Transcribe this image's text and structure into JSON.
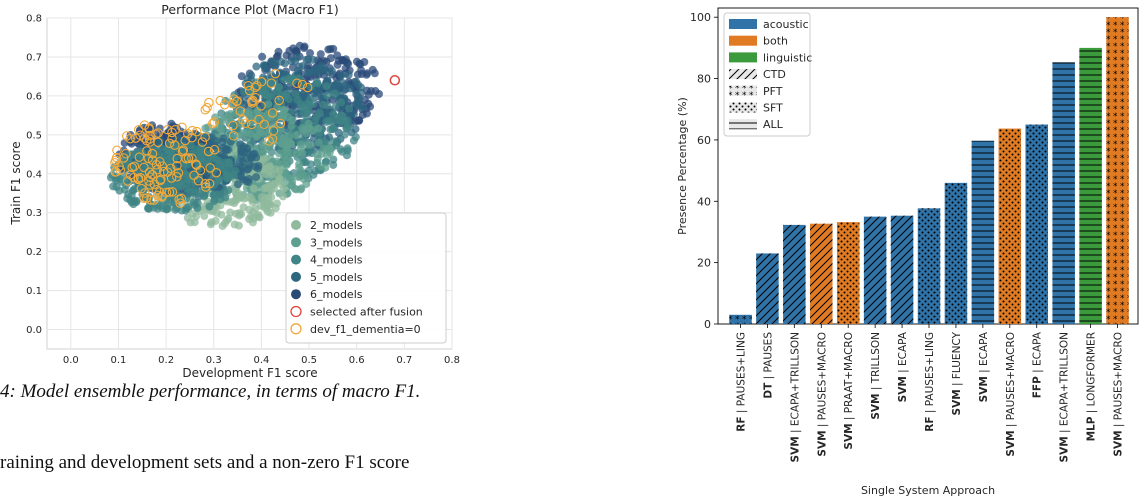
{
  "chart_data": [
    {
      "type": "scatter",
      "title": "Performance Plot (Macro F1)",
      "xlabel": "Development F1 score",
      "ylabel": "Train F1 score",
      "xlim": [
        -0.05,
        0.8
      ],
      "ylim": [
        -0.05,
        0.8
      ],
      "xticks": [
        "0.0",
        "0.1",
        "0.2",
        "0.3",
        "0.4",
        "0.5",
        "0.6",
        "0.7",
        "0.8"
      ],
      "yticks": [
        "0.0",
        "0.1",
        "0.2",
        "0.3",
        "0.4",
        "0.5",
        "0.6",
        "0.7",
        "0.8"
      ],
      "grid": true,
      "legend_position": "lower-right",
      "series": [
        {
          "name": "2_models",
          "color": "#8fba9c"
        },
        {
          "name": "3_models",
          "color": "#5e9f8f"
        },
        {
          "name": "4_models",
          "color": "#3f8486"
        },
        {
          "name": "5_models",
          "color": "#2e6680"
        },
        {
          "name": "6_models",
          "color": "#2a4a78"
        },
        {
          "name": "selected after fusion",
          "color": "#e0423c",
          "marker": "hollow-circle"
        },
        {
          "name": "dev_f1_dementia=0",
          "color": "#f0a83a",
          "marker": "hollow-circle"
        }
      ],
      "clusters": [
        {
          "series": "6_models",
          "x": [
            0.35,
            0.65
          ],
          "y": [
            0.5,
            0.73
          ]
        },
        {
          "series": "5_models",
          "x": [
            0.33,
            0.62
          ],
          "y": [
            0.45,
            0.7
          ]
        },
        {
          "series": "4_models",
          "x": [
            0.3,
            0.6
          ],
          "y": [
            0.38,
            0.65
          ]
        },
        {
          "series": "3_models",
          "x": [
            0.25,
            0.55
          ],
          "y": [
            0.33,
            0.58
          ]
        },
        {
          "series": "2_models",
          "x": [
            0.18,
            0.45
          ],
          "y": [
            0.26,
            0.47
          ]
        },
        {
          "series": "6_models",
          "x": [
            0.1,
            0.3
          ],
          "y": [
            0.35,
            0.53
          ]
        },
        {
          "series": "5_models",
          "x": [
            0.12,
            0.4
          ],
          "y": [
            0.34,
            0.5
          ]
        },
        {
          "series": "4_models",
          "x": [
            0.08,
            0.35
          ],
          "y": [
            0.3,
            0.48
          ]
        }
      ],
      "highlight_points": [
        {
          "series": "selected after fusion",
          "x": 0.68,
          "y": 0.64
        }
      ]
    },
    {
      "type": "bar",
      "xlabel": "Single System Approach",
      "ylabel": "Presence Percentage (%)",
      "ylim": [
        0,
        103
      ],
      "yticks": [
        "0",
        "20",
        "40",
        "60",
        "80",
        "100"
      ],
      "legend_position": "top-left",
      "legend": [
        {
          "label": "acoustic",
          "kind": "color",
          "color": "#2f73a8"
        },
        {
          "label": "both",
          "kind": "color",
          "color": "#e07b24"
        },
        {
          "label": "linguistic",
          "kind": "color",
          "color": "#3a9a3c"
        },
        {
          "label": "CTD",
          "kind": "hatch",
          "hatch": "diagonal"
        },
        {
          "label": "PFT",
          "kind": "hatch",
          "hatch": "stars"
        },
        {
          "label": "SFT",
          "kind": "hatch",
          "hatch": "dots"
        },
        {
          "label": "ALL",
          "kind": "hatch",
          "hatch": "horizontal"
        }
      ],
      "categories": [
        {
          "model": "RF",
          "features": " | PAUSES+LING"
        },
        {
          "model": "DT",
          "features": " | PAUSES"
        },
        {
          "model": "SVM",
          "features": " | ECAPA+TRILLSON"
        },
        {
          "model": "SVM",
          "features": " | PAUSES+MACRO"
        },
        {
          "model": "SVM",
          "features": " | PRAAT+MACRO"
        },
        {
          "model": "SVM",
          "features": " | TRILLSON"
        },
        {
          "model": "SVM",
          "features": " | ECAPA"
        },
        {
          "model": "RF",
          "features": " | PAUSES+LING"
        },
        {
          "model": "SVM",
          "features": " | FLUENCY"
        },
        {
          "model": "SVM",
          "features": " | ECAPA"
        },
        {
          "model": "SVM",
          "features": " | PAUSES+MACRO"
        },
        {
          "model": "FFP",
          "features": " | ECAPA"
        },
        {
          "model": "SVM",
          "features": " | ECAPA+TRILLSON"
        },
        {
          "model": "MLP",
          "features": " | LONGFORMER"
        },
        {
          "model": "SVM",
          "features": " | PAUSES+MACRO"
        }
      ],
      "values": [
        3,
        23,
        32.3,
        32.7,
        33.2,
        35,
        35.3,
        37.7,
        46,
        59.7,
        63.7,
        65,
        85.3,
        90,
        100
      ],
      "bar_group": [
        "acoustic",
        "acoustic",
        "acoustic",
        "both",
        "both",
        "acoustic",
        "acoustic",
        "acoustic",
        "acoustic",
        "acoustic",
        "both",
        "acoustic",
        "acoustic",
        "linguistic",
        "both"
      ],
      "bar_hatch": [
        "stars",
        "diagonal",
        "diagonal",
        "diagonal",
        "dots",
        "diagonal",
        "diagonal",
        "dots",
        "dots",
        "horizontal",
        "dots",
        "dots",
        "horizontal",
        "horizontal",
        "stars"
      ]
    }
  ],
  "caption": "4: Model ensemble performance, in terms of macro F1.",
  "body_text": "raining and development sets and a non-zero F1 score"
}
